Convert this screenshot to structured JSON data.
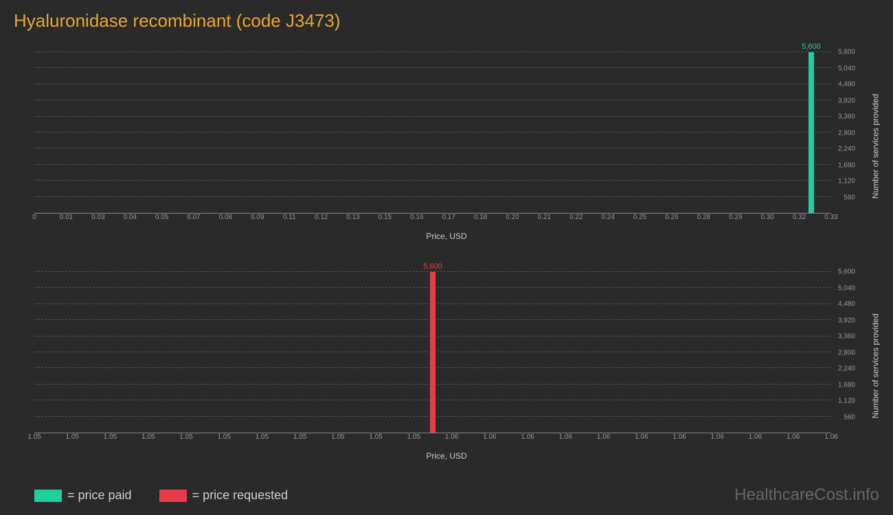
{
  "title": "Hyaluronidase recombinant (code J3473)",
  "chart1": {
    "type": "bar",
    "bar_x_percent": 97.5,
    "bar_value": 5600,
    "bar_label": "5,600",
    "bar_color": "#1fcea3",
    "x_ticks": [
      "0",
      "0.01",
      "0.03",
      "0.04",
      "0.05",
      "0.07",
      "0.08",
      "0.09",
      "0.11",
      "0.12",
      "0.13",
      "0.15",
      "0.16",
      "0.17",
      "0.18",
      "0.20",
      "0.21",
      "0.22",
      "0.24",
      "0.25",
      "0.26",
      "0.28",
      "0.29",
      "0.30",
      "0.32",
      "0.33"
    ],
    "x_label": "Price, USD",
    "y_ticks": [
      "560",
      "1,120",
      "1,680",
      "2,240",
      "2,800",
      "3,360",
      "3,920",
      "4,480",
      "5,040",
      "5,600"
    ],
    "y_label": "Number of services provided",
    "y_max": 5600,
    "grid_color": "#555555",
    "axis_color": "#888888",
    "background_color": "#2a2a2a"
  },
  "chart2": {
    "type": "bar",
    "bar_x_percent": 50,
    "bar_value": 5600,
    "bar_label": "5,600",
    "bar_color": "#e83c4a",
    "x_ticks": [
      "1.05",
      "1.05",
      "1.05",
      "1.05",
      "1.05",
      "1.05",
      "1.05",
      "1.05",
      "1.05",
      "1.05",
      "1.05",
      "1.06",
      "1.06",
      "1.06",
      "1.06",
      "1.06",
      "1.06",
      "1.06",
      "1.06",
      "1.06",
      "1.06",
      "1.06"
    ],
    "x_label": "Price, USD",
    "y_ticks": [
      "560",
      "1,120",
      "1,680",
      "2,240",
      "2,800",
      "3,360",
      "3,920",
      "4,480",
      "5,040",
      "5,600"
    ],
    "y_label": "Number of services provided",
    "y_max": 5600,
    "grid_color": "#555555",
    "axis_color": "#888888"
  },
  "legend": {
    "paid": {
      "color": "#1fcea3",
      "text": "= price paid"
    },
    "requested": {
      "color": "#e83c4a",
      "text": "= price requested"
    }
  },
  "watermark": "HealthcareCost.info"
}
